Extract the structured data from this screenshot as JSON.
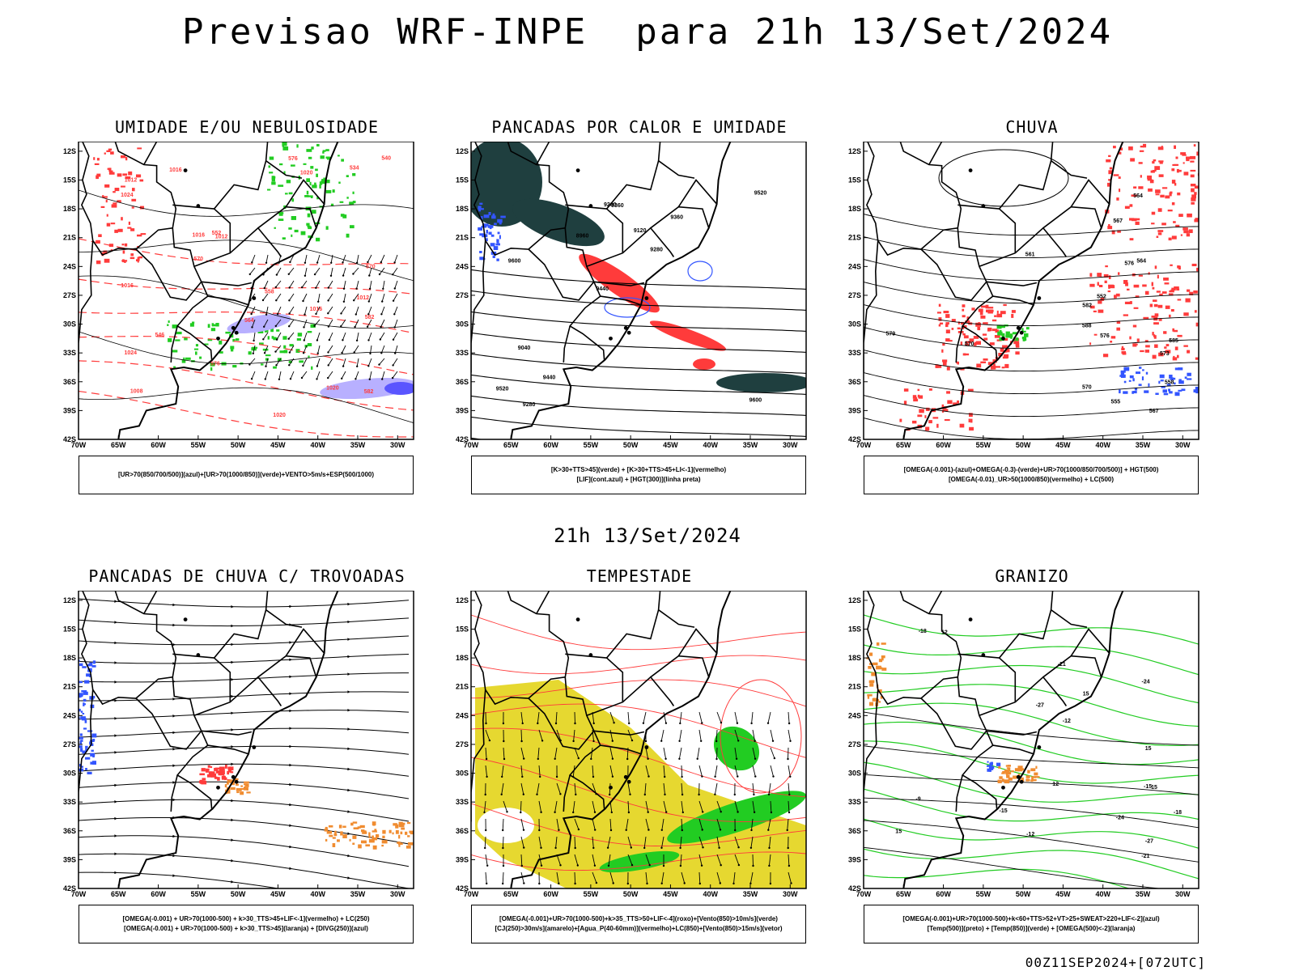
{
  "title": "Previsao WRF-INPE  para 21h 13/Set/2024",
  "mid_date": "21h 13/Set/2024",
  "footer": "00Z11SEP2024+[072UTC]",
  "axes": {
    "lat_labels": [
      "12S",
      "15S",
      "18S",
      "21S",
      "24S",
      "27S",
      "30S",
      "33S",
      "36S",
      "39S",
      "42S"
    ],
    "lon_labels": [
      "70W",
      "65W",
      "60W",
      "55W",
      "50W",
      "45W",
      "40W",
      "35W",
      "30W"
    ]
  },
  "colors": {
    "green": "#22cc22",
    "red": "#ff3b3b",
    "blue": "#3355ff",
    "lavender": "#b8b0ff",
    "dark_teal": "#1f3f3f",
    "yellow": "#e6d830",
    "orange": "#f08c30",
    "black": "#000000"
  },
  "panels": [
    {
      "id": "umidade",
      "title": "UMIDADE E/OU NEBULOSIDADE",
      "legend": [
        "[UR>70(850/700/500)](azul)+[UR>70(1000/850)](verde)+VENTO>5m/s+ESP(500/1000)"
      ],
      "contour_labels": [
        "1016",
        "1012",
        "1008",
        "1016",
        "1012",
        "1020",
        "1024",
        "1020",
        "1016",
        "1020",
        "1024",
        "1016",
        "1012",
        "582",
        "576",
        "570",
        "564",
        "558",
        "552",
        "546",
        "540",
        "534",
        "570",
        "582",
        "576"
      ]
    },
    {
      "id": "pancadas-calor",
      "title": "PANCADAS POR CALOR E UMIDADE",
      "legend": [
        "[K>30+TTS>45](verde) + [K>30+TTS>45+LI<-1](vermelho)",
        "[LIF](cont.azul) + [HGT(300)](linha preta)"
      ],
      "contour_labels": [
        "9600",
        "9600",
        "9520",
        "9440",
        "9360",
        "9280",
        "9200",
        "9120",
        "9040",
        "8960",
        "9520",
        "9440",
        "9360",
        "9280"
      ]
    },
    {
      "id": "chuva",
      "title": "CHUVA",
      "legend": [
        "[OMEGA(-0.001)-(azul)+OMEGA(-0.3)-(verde)+UR>70(1000/850/700/500)] + HGT(500)",
        "[OMEGA(-0.01)_UR>50(1000/850)(vermelho) + LC(500)"
      ],
      "contour_labels": [
        "588",
        "585",
        "576",
        "573",
        "570",
        "567",
        "564",
        "561",
        "558",
        "555",
        "552",
        "582",
        "579",
        "576",
        "570",
        "567",
        "564"
      ]
    },
    {
      "id": "trovoadas",
      "title": "PANCADAS DE CHUVA C/ TROVOADAS",
      "legend": [
        "[OMEGA(-0.001) + UR>70(1000-500) + k>30_TTS>45+LIF<-1](vermelho) + LC(250)",
        "[OMEGA(-0.001) + UR>70(1000-500) + k>30_TTS>45](laranja) + [DIVG(250)](azul)"
      ],
      "contour_labels": []
    },
    {
      "id": "tempestade",
      "title": "TEMPESTADE",
      "legend": [
        "[OMEGA(-0.001)+UR>70(1000-500)+k>35_TTS>50+LIF<-4](roxo)+[Vento(850)>10m/s](verde)",
        "[CJ(250)>30m/s](amarelo)+[Agua_P(40-60mm)](vermelho)+LC(850)+[Vento(850)>15m/s](vetor)"
      ],
      "contour_labels": []
    },
    {
      "id": "granizo",
      "title": "GRANIZO",
      "legend": [
        "[OMEGA(-0.001)+UR>70(1000-500)+k<60+TTS>52+VT>25+SWEAT>220+LIF<-2](azul)",
        "[Temp(500)](preto) + [Temp(850)](verde) + [OMEGA(500)<-2](laranja)"
      ],
      "contour_labels": [
        "-9",
        "-12",
        "-15",
        "-18",
        "-21",
        "-24",
        "-27",
        "15",
        "15",
        "15",
        "12",
        "12",
        "15",
        "-12",
        "-18",
        "-15",
        "-21",
        "-24",
        "-27"
      ]
    }
  ]
}
